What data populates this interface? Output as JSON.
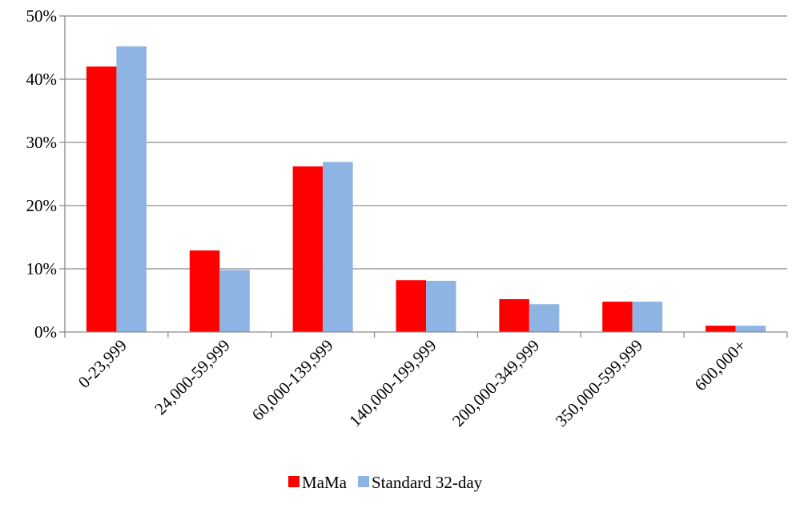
{
  "chart_data": {
    "type": "bar",
    "title": "",
    "xlabel": "",
    "ylabel": "",
    "categories": [
      "0-23,999",
      "24,000-59,999",
      "60,000-139,999",
      "140,000-199,999",
      "200,000-349,999",
      "350,000-599,999",
      "600,000+"
    ],
    "series": [
      {
        "name": "MaMa",
        "color": "#ff0000",
        "values": [
          42.0,
          12.9,
          26.2,
          8.2,
          5.2,
          4.8,
          1.0
        ]
      },
      {
        "name": "Standard 32-day",
        "color": "#8db4e2",
        "values": [
          45.2,
          9.8,
          26.9,
          8.1,
          4.4,
          4.8,
          1.0
        ]
      }
    ],
    "ylim": [
      0,
      50
    ],
    "yticks": [
      0,
      10,
      20,
      30,
      40,
      50
    ],
    "ytick_labels": [
      "0%",
      "10%",
      "20%",
      "30%",
      "40%",
      "50%"
    ],
    "grid": true,
    "legend_position": "bottom"
  }
}
